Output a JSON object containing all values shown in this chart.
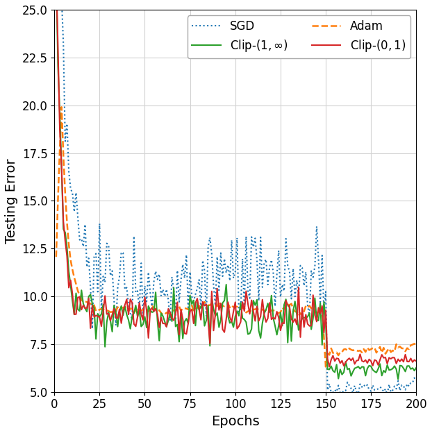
{
  "title": "",
  "xlabel": "Epochs",
  "ylabel": "Testing Error",
  "xlim": [
    0,
    200
  ],
  "ylim": [
    5.0,
    25.0
  ],
  "xticks": [
    0,
    25,
    50,
    75,
    100,
    125,
    150,
    175,
    200
  ],
  "yticks": [
    5.0,
    7.5,
    10.0,
    12.5,
    15.0,
    17.5,
    20.0,
    22.5,
    25.0
  ],
  "sgd_color": "#1f77b4",
  "adam_color": "#ff7f0e",
  "clip1inf_color": "#2ca02c",
  "clip01_color": "#d62728",
  "seed": 0,
  "n_epochs": 200,
  "switch_epoch": 150,
  "figsize": [
    6.22,
    6.24
  ],
  "dpi": 100
}
